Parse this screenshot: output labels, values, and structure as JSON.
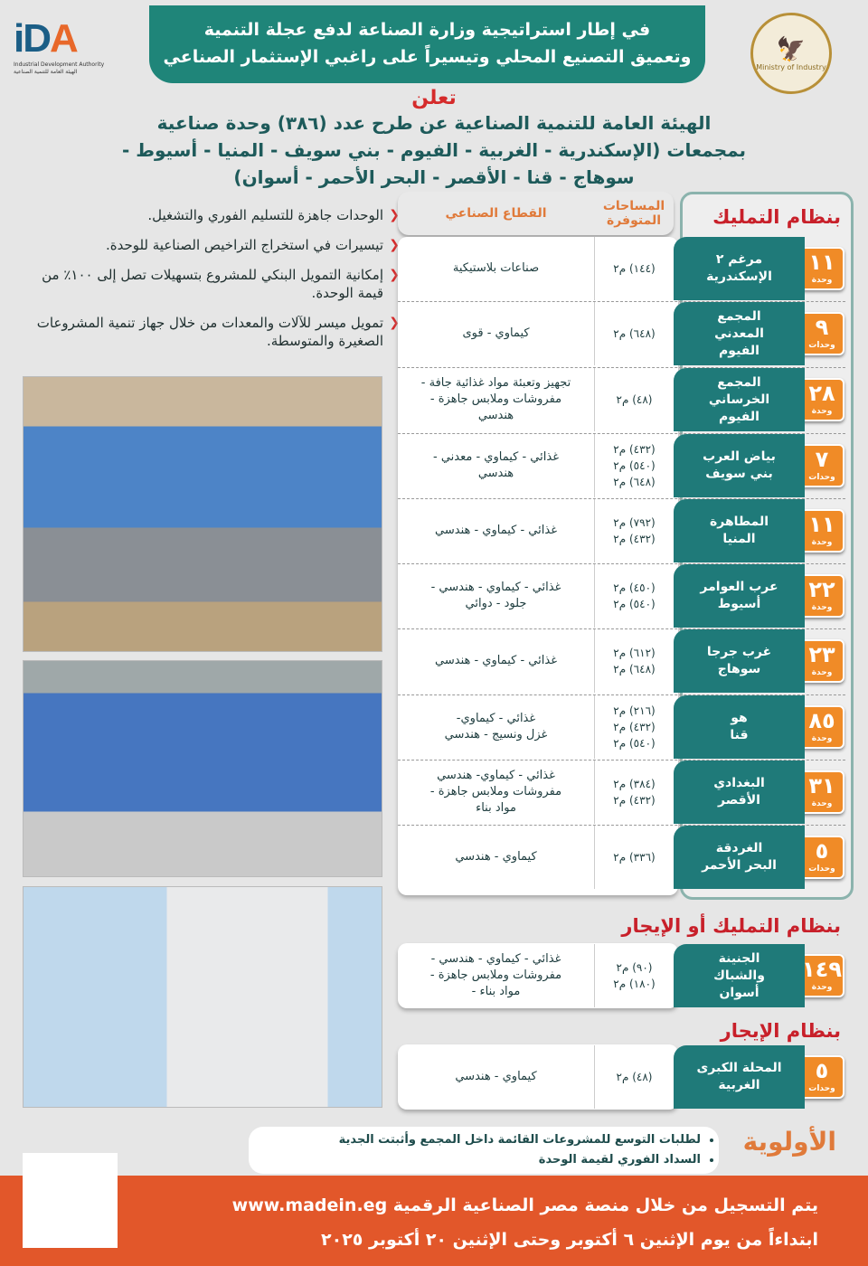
{
  "header": {
    "logo_text": "IDA",
    "logo_en": "Industrial Development Authority",
    "logo_ar": "الهيئة العامة للتنمية الصناعية",
    "title_line1": "في إطار استراتيجية وزارة الصناعة لدفع عجلة التنمية",
    "title_line2": "وتعميق التصنيع المحلي وتيسيراً على راغبي الإستثمار الصناعي",
    "seal_ar": "وزارة الصناعة",
    "seal_en": "Ministry of Industry"
  },
  "announcement": {
    "lead": "تعلن",
    "line1": "الهيئة العامة للتنمية الصناعية عن طرح عدد (٣٨٦) وحدة صناعية",
    "line2": "بمجمعات (الإسكندرية - الغربية - الفيوم - بني سويف - المنيا - أسيوط -",
    "line3": "سوهاج - قنا - الأقصر - البحر الأحمر - أسوان)"
  },
  "benefits": [
    "الوحدات جاهزة للتسليم الفوري والتشغيل.",
    "تيسيرات في استخراج التراخيص الصناعية للوحدة.",
    "إمكانية التمويل البنكي للمشروع بتسهيلات تصل إلى ١٠٠٪ من قيمة الوحدة.",
    "تمويل ميسر للآلات والمعدات من خلال جهاز تنمية المشروعات الصغيرة والمتوسطة."
  ],
  "table_headers": {
    "area": "المساحات المتوفرة",
    "sector": "القطاع الصناعي"
  },
  "sections": {
    "ownership": "بنظام التمليك",
    "ownership_or_rent": "بنظام التمليك أو الإيجار",
    "rent": "بنظام الإيجار"
  },
  "rows": [
    {
      "count": "١١",
      "unit": "وحدة",
      "site": [
        "مرغم ٢",
        "الإسكندرية"
      ],
      "areas": [
        "(١٤٤) م٢"
      ],
      "sector": "صناعات بلاستيكية"
    },
    {
      "count": "٩",
      "unit": "وحدات",
      "site": [
        "المجمع",
        "المعدني",
        "الفيوم"
      ],
      "areas": [
        "(٦٤٨) م٢"
      ],
      "sector": "كيماوي - قوى"
    },
    {
      "count": "٢٨",
      "unit": "وحدة",
      "site": [
        "المجمع",
        "الخرساني",
        "الفيوم"
      ],
      "areas": [
        "(٤٨) م٢"
      ],
      "sector": "تجهيز وتعبئة مواد غذائية جافة -\nمفروشات وملابس جاهزة -\nهندسي"
    },
    {
      "count": "٧",
      "unit": "وحدات",
      "site": [
        "بياض العرب",
        "بني سويف"
      ],
      "areas": [
        "(٤٣٢) م٢",
        "(٥٤٠) م٢",
        "(٦٤٨) م٢"
      ],
      "sector": "غذائي - كيماوي - معدني -\nهندسي"
    },
    {
      "count": "١١",
      "unit": "وحدة",
      "site": [
        "المطاهرة",
        "المنيا"
      ],
      "areas": [
        "(٧٩٢) م٢",
        "(٤٣٢) م٢"
      ],
      "sector": "غذائي - كيماوي - هندسي"
    },
    {
      "count": "٢٢",
      "unit": "وحدة",
      "site": [
        "عرب العوامر",
        "أسيوط"
      ],
      "areas": [
        "(٤٥٠) م٢",
        "(٥٤٠) م٢"
      ],
      "sector": "غذائي - كيماوي - هندسي -\nجلود - دوائي"
    },
    {
      "count": "٢٣",
      "unit": "وحدة",
      "site": [
        "غرب جرجا",
        "سوهاج"
      ],
      "areas": [
        "(٦١٢) م٢",
        "(٦٤٨) م٢"
      ],
      "sector": "غذائي - كيماوي - هندسي"
    },
    {
      "count": "٨٥",
      "unit": "وحدة",
      "site": [
        "هو",
        "قنا"
      ],
      "areas": [
        "(٢١٦) م٢",
        "(٤٣٢) م٢",
        "(٥٤٠) م٢"
      ],
      "sector": "غذائي - كيماوي-\nغزل ونسيج - هندسي"
    },
    {
      "count": "٣١",
      "unit": "وحدة",
      "site": [
        "البغدادي",
        "الأقصر"
      ],
      "areas": [
        "(٣٨٤) م٢",
        "(٤٣٢) م٢"
      ],
      "sector": "غذائي - كيماوي- هندسي\nمفروشات وملابس جاهزة -\nمواد بناء"
    },
    {
      "count": "٥",
      "unit": "وحدات",
      "site": [
        "الغردقة",
        "البحر الأحمر"
      ],
      "areas": [
        "(٣٣٦) م٢"
      ],
      "sector": "كيماوي - هندسي"
    },
    {
      "count": "١٤٩",
      "unit": "وحدة",
      "site": [
        "الجنينة",
        "والشباك",
        "أسوان"
      ],
      "areas": [
        "(٩٠) م٢",
        "(١٨٠) م٢"
      ],
      "sector": "غذائي - كيماوي - هندسي -\nمفروشات وملابس جاهزة -\nمواد بناء -"
    },
    {
      "count": "٥",
      "unit": "وحدات",
      "site": [
        "المحلة الكبرى",
        "الغربية"
      ],
      "areas": [
        "(٤٨) م٢"
      ],
      "sector": "كيماوي - هندسي"
    }
  ],
  "priority": {
    "label": "الأولوية",
    "items": [
      "لطلبات التوسع للمشروعات القائمة داخل المجمع وأثبتت الجدية",
      "السداد الفوري لقيمة الوحدة"
    ]
  },
  "footer": {
    "line1": "يتم التسجيل من خلال منصة مصر الصناعية الرقمية www.madein.eg",
    "line2": "ابتداءاً من يوم الإثنين ٦ أكتوبر وحتى الإثنين ٢٠ أكتوبر ٢٠٢٥"
  },
  "colors": {
    "teal": "#1f7a79",
    "orange": "#f08b27",
    "red": "#c8202a",
    "footer": "#e2572a"
  }
}
